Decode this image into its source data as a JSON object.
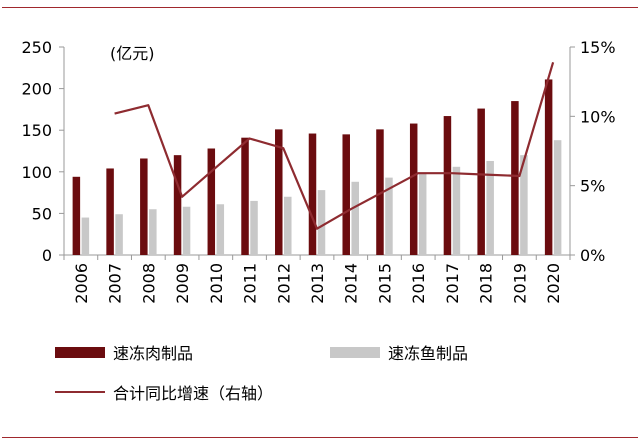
{
  "chart_data": {
    "type": "bar+line",
    "unit_label": "(亿元)",
    "categories": [
      "2006",
      "2007",
      "2008",
      "2009",
      "2010",
      "2011",
      "2012",
      "2013",
      "2014",
      "2015",
      "2016",
      "2017",
      "2018",
      "2019",
      "2020"
    ],
    "series": [
      {
        "name": "速冻肉制品",
        "kind": "bar",
        "axis": "left",
        "color": "#6b0c0f",
        "values": [
          94,
          104,
          116,
          120,
          128,
          141,
          151,
          146,
          145,
          151,
          158,
          167,
          176,
          185,
          211
        ]
      },
      {
        "name": "速冻鱼制品",
        "kind": "bar",
        "axis": "left",
        "color": "#c8c8c8",
        "values": [
          45,
          49,
          55,
          58,
          61,
          65,
          70,
          78,
          88,
          93,
          99,
          106,
          113,
          120,
          138
        ]
      },
      {
        "name": "合计同比增速（右轴）",
        "kind": "line",
        "axis": "right",
        "color": "#8e2b30",
        "values": [
          null,
          10.2,
          10.8,
          4.2,
          6.3,
          8.4,
          7.7,
          1.9,
          3.3,
          4.6,
          5.9,
          5.9,
          5.8,
          5.7,
          13.9
        ]
      }
    ],
    "y_left": {
      "min": 0,
      "max": 250,
      "ticks": [
        0,
        50,
        100,
        150,
        200,
        250
      ]
    },
    "y_right": {
      "min": 0,
      "max": 15,
      "ticks": [
        "0%",
        "5%",
        "10%",
        "15%"
      ]
    },
    "grid": false,
    "legend_position": "bottom"
  }
}
